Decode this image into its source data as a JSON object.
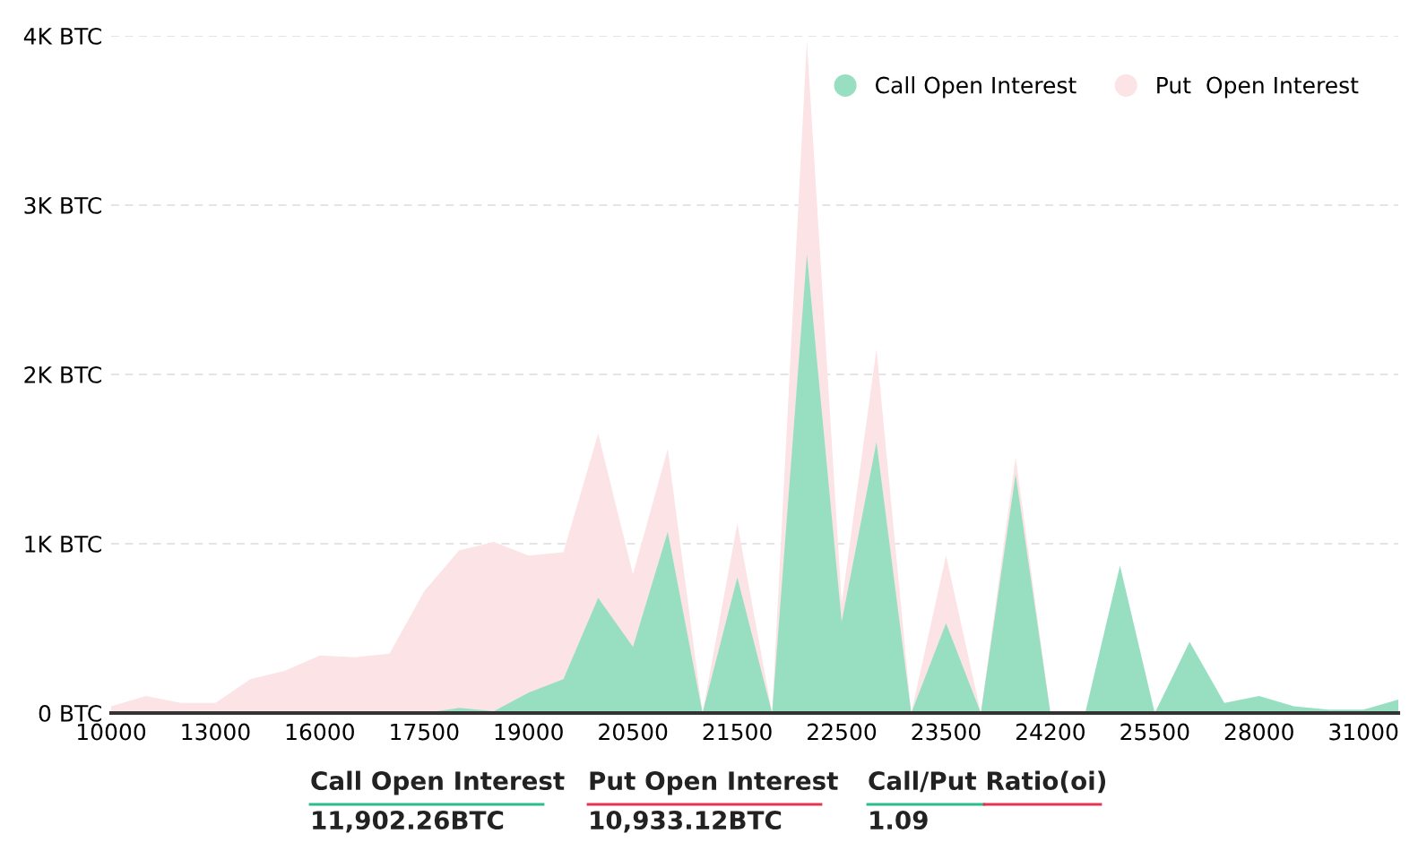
{
  "chart_data": {
    "type": "area",
    "categories": [
      "10000",
      null,
      null,
      "13000",
      null,
      null,
      "16000",
      null,
      null,
      "17500",
      null,
      null,
      "19000",
      null,
      null,
      "20500",
      null,
      null,
      "21500",
      null,
      null,
      "22500",
      null,
      null,
      "23500",
      null,
      null,
      "24200",
      null,
      null,
      "25500",
      null,
      null,
      "28000",
      null,
      null,
      "31000",
      null
    ],
    "series": [
      {
        "name": "Put  Open Interest",
        "color": "#fbe3e6",
        "values": [
          40,
          100,
          60,
          60,
          200,
          250,
          340,
          330,
          350,
          720,
          960,
          1010,
          930,
          950,
          1650,
          820,
          1560,
          0,
          1120,
          0,
          3970,
          650,
          2150,
          0,
          930,
          0,
          1510,
          0,
          0,
          null,
          null,
          null,
          null,
          null,
          null,
          null,
          null,
          null
        ]
      },
      {
        "name": "Call Open Interest",
        "color": "#98dfc2",
        "values": [
          0,
          0,
          0,
          0,
          0,
          0,
          0,
          0,
          0,
          0,
          30,
          10,
          120,
          200,
          680,
          390,
          1070,
          0,
          800,
          0,
          2710,
          540,
          1600,
          0,
          530,
          0,
          1410,
          0,
          0,
          870,
          0,
          420,
          60,
          100,
          40,
          20,
          20,
          80
        ]
      }
    ],
    "ylim": [
      0,
      4000
    ],
    "yticks": [
      {
        "value": 0,
        "label": "0 BTC"
      },
      {
        "value": 1000,
        "label": "1K BTC"
      },
      {
        "value": 2000,
        "label": "2K BTC"
      },
      {
        "value": 3000,
        "label": "3K BTC"
      },
      {
        "value": 4000,
        "label": "4K BTC"
      }
    ],
    "grid": "y",
    "legend": "top right",
    "annotations": [
      "Call Open Interest",
      "11,902.26BTC",
      "Put Open Interest",
      "10,933.12BTC",
      "Call/Put Ratio(oi)",
      "1.09"
    ]
  }
}
